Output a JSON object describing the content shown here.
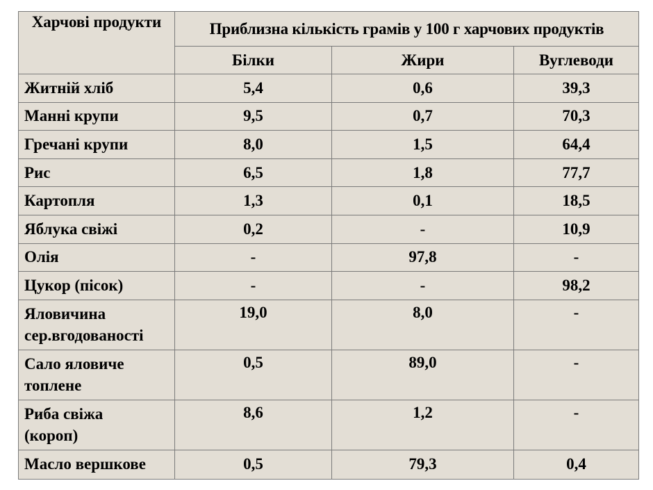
{
  "table": {
    "header": {
      "products": "Харчові продукти",
      "group": "Приблизна кількість грамів у 100 г харчових продуктів",
      "protein": "Білки",
      "fat": "Жири",
      "carbs": "Вуглеводи"
    },
    "rows": [
      {
        "name": "Житній хліб",
        "protein": "5,4",
        "fat": "0,6",
        "carbs": "39,3"
      },
      {
        "name": "Манні крупи",
        "protein": "9,5",
        "fat": "0,7",
        "carbs": "70,3"
      },
      {
        "name": "Гречані крупи",
        "protein": "8,0",
        "fat": "1,5",
        "carbs": "64,4"
      },
      {
        "name": "Рис",
        "protein": "6,5",
        "fat": "1,8",
        "carbs": "77,7"
      },
      {
        "name": "Картопля",
        "protein": "1,3",
        "fat": "0,1",
        "carbs": "18,5"
      },
      {
        "name": "Яблука свіжі",
        "protein": "0,2",
        "fat": "-",
        "carbs": "10,9"
      },
      {
        "name": "Олія",
        "protein": "-",
        "fat": "97,8",
        "carbs": "-"
      },
      {
        "name": "Цукор (пісок)",
        "protein": "-",
        "fat": "-",
        "carbs": "98,2"
      },
      {
        "name_line1": "Яловичина",
        "name_line2": "сер.вгодованості",
        "protein": "19,0",
        "fat": "8,0",
        "carbs": "-"
      },
      {
        "name_line1": "Сало яловиче",
        "name_line2": "топлене",
        "protein": "0,5",
        "fat": "89,0",
        "carbs": "-"
      },
      {
        "name_line1": "Риба свіжа",
        "name_line2": "(короп)",
        "protein": "8,6",
        "fat": "1,2",
        "carbs": "-"
      },
      {
        "name": "Масло вершкове",
        "protein": "0,5",
        "fat": "79,3",
        "carbs": "0,4"
      }
    ]
  }
}
